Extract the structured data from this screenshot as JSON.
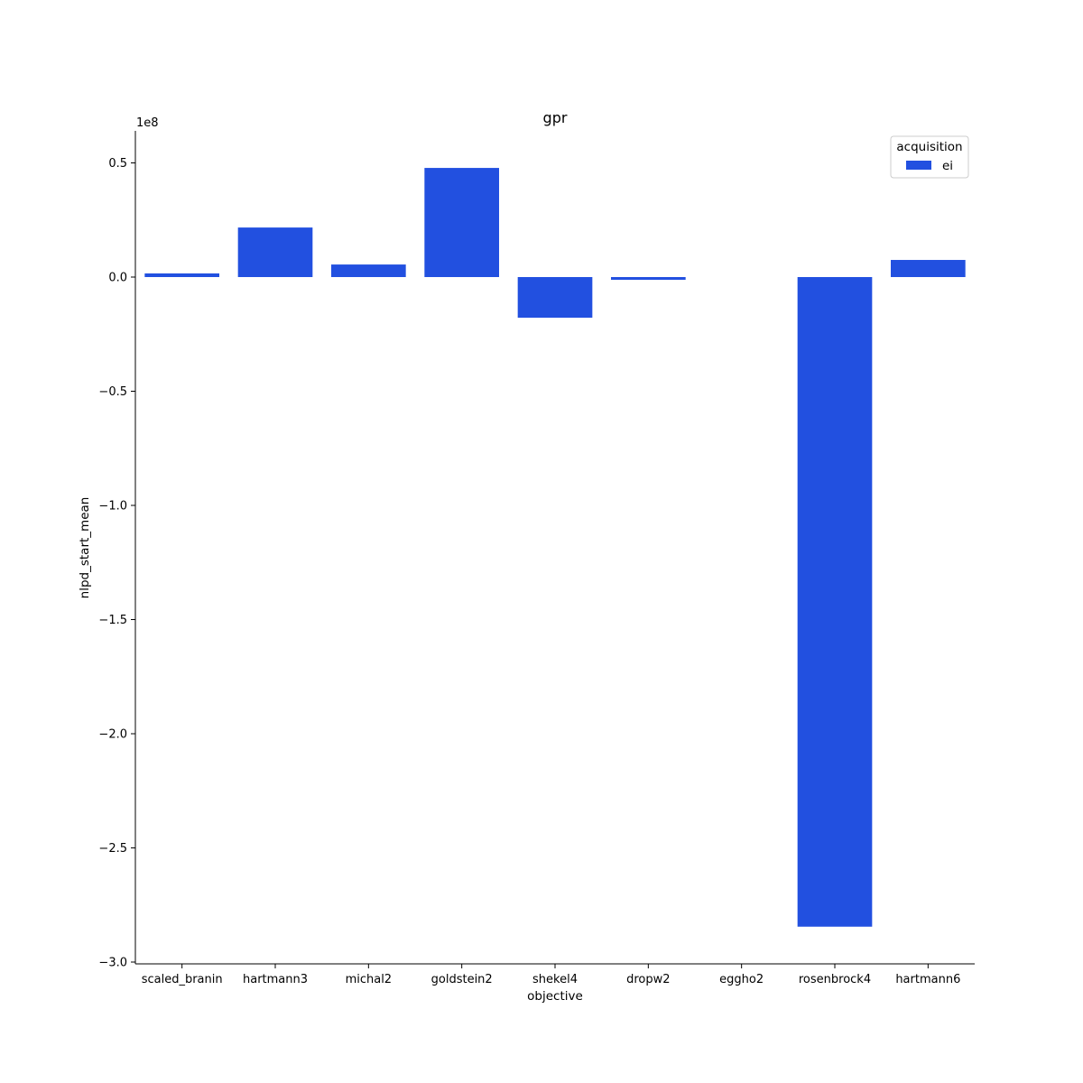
{
  "chart_data": {
    "type": "bar",
    "title": "gpr",
    "xlabel": "objective",
    "ylabel": "nlpd_start_mean",
    "y_offset_label": "1e8",
    "y_scale_factor": 100000000,
    "ylim": [
      -3.02,
      0.64
    ],
    "yticks": [
      -3.0,
      -2.5,
      -2.0,
      -1.5,
      -1.0,
      -0.5,
      0.0,
      0.5
    ],
    "ytick_labels": [
      "−3.0",
      "−2.5",
      "−2.0",
      "−1.5",
      "−1.0",
      "−0.5",
      "0.0",
      "0.5"
    ],
    "categories": [
      "scaled_branin",
      "hartmann3",
      "michal2",
      "goldstein2",
      "shekel4",
      "dropw2",
      "eggho2",
      "rosenbrock4",
      "hartmann6"
    ],
    "series": [
      {
        "name": "ei",
        "color": "#2250e0",
        "values": [
          0.016,
          0.217,
          0.055,
          0.478,
          -0.178,
          -0.012,
          0.0,
          -2.845,
          0.075
        ]
      }
    ],
    "legend": {
      "title": "acquisition",
      "placement": "top-right"
    },
    "grid": false
  }
}
